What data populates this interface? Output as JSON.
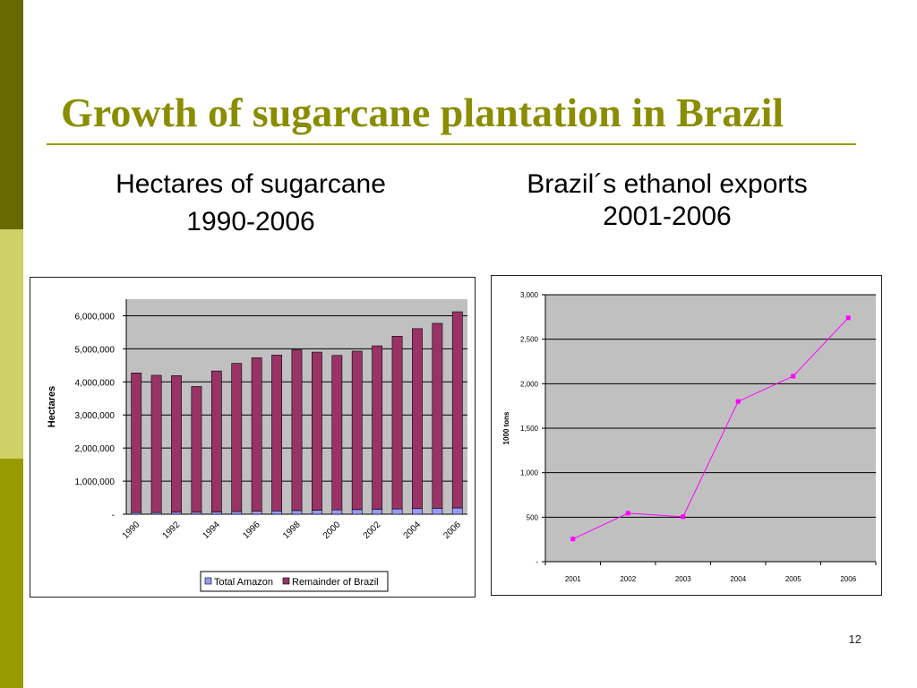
{
  "slide": {
    "title": "Growth of  sugarcane plantation in Brazil",
    "left_heading_line1": "Hectares of sugarcane",
    "left_heading_line2": "1990-2006",
    "right_heading_line1": "Brazil´s ethanol exports",
    "right_heading_line2": "2001-2006",
    "page_number": "12"
  },
  "colors": {
    "accent": "#8a8d00",
    "amazon_bar": "#9999ff",
    "remainder_bar": "#993366",
    "line": "#ff00ff",
    "plot_bg": "#c0c0c0"
  },
  "chart_data": [
    {
      "type": "bar",
      "stacked": true,
      "categories": [
        "1990",
        "1991",
        "1992",
        "1993",
        "1994",
        "1995",
        "1996",
        "1997",
        "1998",
        "1999",
        "2000",
        "2001",
        "2002",
        "2003",
        "2004",
        "2005",
        "2006"
      ],
      "tick_labels": [
        "1990",
        "",
        "1992",
        "",
        "1994",
        "",
        "1996",
        "",
        "1998",
        "",
        "2000",
        "",
        "2002",
        "",
        "2004",
        "",
        "2006"
      ],
      "series": [
        {
          "name": "Total Amazon",
          "values": [
            50000,
            50000,
            60000,
            60000,
            70000,
            80000,
            90000,
            100000,
            110000,
            120000,
            130000,
            140000,
            150000,
            160000,
            170000,
            180000,
            190000
          ]
        },
        {
          "name": "Remainder of Brazil",
          "values": [
            4220000,
            4150000,
            4130000,
            3800000,
            4260000,
            4480000,
            4640000,
            4710000,
            4860000,
            4780000,
            4670000,
            4790000,
            4940000,
            5220000,
            5440000,
            5590000,
            5930000
          ]
        }
      ],
      "ylabel": "Hectares",
      "ylim": [
        0,
        6500000
      ],
      "yticks": [
        0,
        1000000,
        2000000,
        3000000,
        4000000,
        5000000,
        6000000
      ],
      "ytick_labels": [
        "-",
        "1,000,000",
        "2,000,000",
        "3,000,000",
        "4,000,000",
        "5,000,000",
        "6,000,000"
      ],
      "grid": true,
      "legend": "bottom"
    },
    {
      "type": "line",
      "categories": [
        "2001",
        "2002",
        "2003",
        "2004",
        "2005",
        "2006"
      ],
      "values": [
        255,
        545,
        505,
        1800,
        2085,
        2740
      ],
      "ylabel": "1000 tons",
      "ylim": [
        0,
        3000
      ],
      "yticks": [
        0,
        500,
        1000,
        1500,
        2000,
        2500,
        3000
      ],
      "ytick_labels": [
        "-",
        "500",
        "1,000",
        "1,500",
        "2,000",
        "2,500",
        "3,000"
      ],
      "grid": true,
      "legend": "none"
    }
  ]
}
